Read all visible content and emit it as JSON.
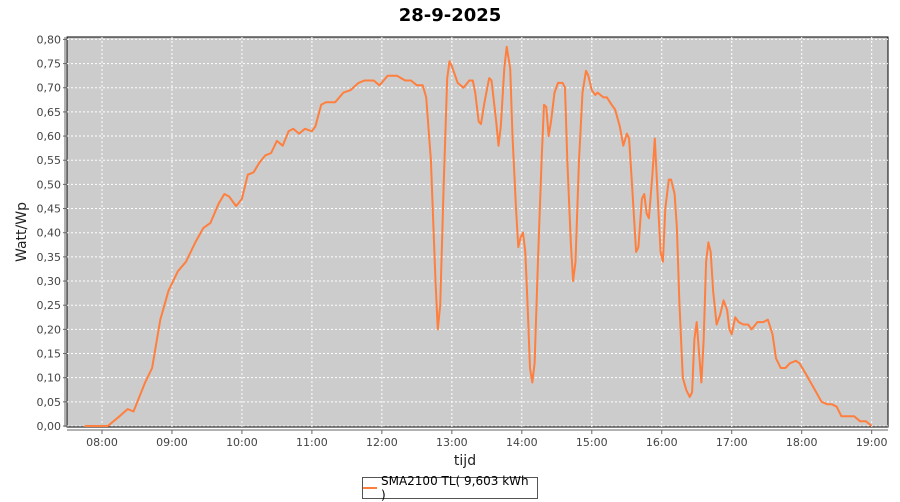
{
  "chart_data": {
    "type": "line",
    "title": "28-9-2025",
    "xlabel": "tijd",
    "ylabel": "Watt/Wp",
    "xlim": [
      "07:30",
      "19:14"
    ],
    "ylim": [
      0,
      0.805
    ],
    "grid": true,
    "legend_placement": "bottom",
    "background_color": "#cccccc",
    "xticks": [
      "08:00",
      "09:00",
      "10:00",
      "11:00",
      "12:00",
      "13:00",
      "14:00",
      "15:00",
      "16:00",
      "17:00",
      "18:00",
      "19:00"
    ],
    "yticks": [
      "0,00",
      "0,05",
      "0,10",
      "0,15",
      "0,20",
      "0,25",
      "0,30",
      "0,35",
      "0,40",
      "0,45",
      "0,50",
      "0,55",
      "0,60",
      "0,65",
      "0,70",
      "0,75",
      "0,80"
    ],
    "series": [
      {
        "name": "SMA2100 TL( 9,603 kWh )",
        "color": "#ff7f3f",
        "points": [
          [
            "07:45",
            0
          ],
          [
            "08:05",
            0
          ],
          [
            "08:15",
            0.02
          ],
          [
            "08:22",
            0.035
          ],
          [
            "08:27",
            0.03
          ],
          [
            "08:32",
            0.06
          ],
          [
            "08:37",
            0.09
          ],
          [
            "08:43",
            0.12
          ],
          [
            "08:50",
            0.22
          ],
          [
            "08:57",
            0.28
          ],
          [
            "09:05",
            0.32
          ],
          [
            "09:12",
            0.34
          ],
          [
            "09:20",
            0.38
          ],
          [
            "09:27",
            0.41
          ],
          [
            "09:33",
            0.42
          ],
          [
            "09:40",
            0.46
          ],
          [
            "09:45",
            0.48
          ],
          [
            "09:49",
            0.475
          ],
          [
            "09:55",
            0.455
          ],
          [
            "10:00",
            0.47
          ],
          [
            "10:05",
            0.52
          ],
          [
            "10:10",
            0.525
          ],
          [
            "10:15",
            0.545
          ],
          [
            "10:20",
            0.56
          ],
          [
            "10:25",
            0.565
          ],
          [
            "10:30",
            0.59
          ],
          [
            "10:35",
            0.58
          ],
          [
            "10:40",
            0.61
          ],
          [
            "10:44",
            0.615
          ],
          [
            "10:49",
            0.605
          ],
          [
            "10:54",
            0.615
          ],
          [
            "11:00",
            0.61
          ],
          [
            "11:03",
            0.62
          ],
          [
            "11:08",
            0.665
          ],
          [
            "11:12",
            0.67
          ],
          [
            "11:20",
            0.67
          ],
          [
            "11:27",
            0.69
          ],
          [
            "11:33",
            0.695
          ],
          [
            "11:40",
            0.71
          ],
          [
            "11:45",
            0.715
          ],
          [
            "11:53",
            0.715
          ],
          [
            "11:58",
            0.705
          ],
          [
            "12:05",
            0.725
          ],
          [
            "12:13",
            0.725
          ],
          [
            "12:20",
            0.715
          ],
          [
            "12:25",
            0.715
          ],
          [
            "12:30",
            0.705
          ],
          [
            "12:35",
            0.705
          ],
          [
            "12:38",
            0.68
          ],
          [
            "12:42",
            0.55
          ],
          [
            "12:46",
            0.3
          ],
          [
            "12:48",
            0.2
          ],
          [
            "12:50",
            0.25
          ],
          [
            "12:53",
            0.5
          ],
          [
            "12:56",
            0.72
          ],
          [
            "12:58",
            0.755
          ],
          [
            "13:00",
            0.745
          ],
          [
            "13:05",
            0.71
          ],
          [
            "13:10",
            0.7
          ],
          [
            "13:15",
            0.715
          ],
          [
            "13:18",
            0.715
          ],
          [
            "13:20",
            0.69
          ],
          [
            "13:23",
            0.63
          ],
          [
            "13:25",
            0.625
          ],
          [
            "13:28",
            0.67
          ],
          [
            "13:32",
            0.72
          ],
          [
            "13:34",
            0.715
          ],
          [
            "13:38",
            0.63
          ],
          [
            "13:40",
            0.58
          ],
          [
            "13:42",
            0.62
          ],
          [
            "13:45",
            0.74
          ],
          [
            "13:47",
            0.785
          ],
          [
            "13:50",
            0.74
          ],
          [
            "13:52",
            0.6
          ],
          [
            "13:55",
            0.45
          ],
          [
            "13:57",
            0.37
          ],
          [
            "13:59",
            0.39
          ],
          [
            "14:01",
            0.4
          ],
          [
            "14:03",
            0.36
          ],
          [
            "14:05",
            0.25
          ],
          [
            "14:07",
            0.12
          ],
          [
            "14:09",
            0.09
          ],
          [
            "14:11",
            0.13
          ],
          [
            "14:14",
            0.35
          ],
          [
            "14:17",
            0.55
          ],
          [
            "14:19",
            0.665
          ],
          [
            "14:21",
            0.66
          ],
          [
            "14:23",
            0.6
          ],
          [
            "14:25",
            0.63
          ],
          [
            "14:28",
            0.69
          ],
          [
            "14:31",
            0.71
          ],
          [
            "14:35",
            0.71
          ],
          [
            "14:37",
            0.7
          ],
          [
            "14:39",
            0.55
          ],
          [
            "14:42",
            0.38
          ],
          [
            "14:44",
            0.3
          ],
          [
            "14:46",
            0.34
          ],
          [
            "14:49",
            0.55
          ],
          [
            "14:52",
            0.69
          ],
          [
            "14:55",
            0.735
          ],
          [
            "14:57",
            0.725
          ],
          [
            "15:00",
            0.695
          ],
          [
            "15:03",
            0.685
          ],
          [
            "15:05",
            0.69
          ],
          [
            "15:10",
            0.68
          ],
          [
            "15:13",
            0.68
          ],
          [
            "15:17",
            0.665
          ],
          [
            "15:20",
            0.655
          ],
          [
            "15:24",
            0.62
          ],
          [
            "15:27",
            0.58
          ],
          [
            "15:30",
            0.605
          ],
          [
            "15:32",
            0.595
          ],
          [
            "15:35",
            0.48
          ],
          [
            "15:38",
            0.36
          ],
          [
            "15:40",
            0.37
          ],
          [
            "15:43",
            0.47
          ],
          [
            "15:45",
            0.48
          ],
          [
            "15:47",
            0.44
          ],
          [
            "15:49",
            0.43
          ],
          [
            "15:52",
            0.52
          ],
          [
            "15:54",
            0.595
          ],
          [
            "15:57",
            0.45
          ],
          [
            "15:59",
            0.36
          ],
          [
            "16:01",
            0.34
          ],
          [
            "16:03",
            0.45
          ],
          [
            "16:06",
            0.51
          ],
          [
            "16:08",
            0.51
          ],
          [
            "16:11",
            0.48
          ],
          [
            "16:13",
            0.41
          ],
          [
            "16:15",
            0.26
          ],
          [
            "16:18",
            0.1
          ],
          [
            "16:21",
            0.075
          ],
          [
            "16:24",
            0.06
          ],
          [
            "16:26",
            0.07
          ],
          [
            "16:28",
            0.18
          ],
          [
            "16:30",
            0.215
          ],
          [
            "16:32",
            0.15
          ],
          [
            "16:34",
            0.09
          ],
          [
            "16:36",
            0.18
          ],
          [
            "16:38",
            0.34
          ],
          [
            "16:40",
            0.38
          ],
          [
            "16:42",
            0.36
          ],
          [
            "16:44",
            0.28
          ],
          [
            "16:47",
            0.21
          ],
          [
            "16:50",
            0.23
          ],
          [
            "16:53",
            0.26
          ],
          [
            "16:56",
            0.24
          ],
          [
            "16:58",
            0.2
          ],
          [
            "17:00",
            0.19
          ],
          [
            "17:03",
            0.225
          ],
          [
            "17:06",
            0.215
          ],
          [
            "17:10",
            0.21
          ],
          [
            "17:14",
            0.21
          ],
          [
            "17:17",
            0.2
          ],
          [
            "17:22",
            0.215
          ],
          [
            "17:27",
            0.215
          ],
          [
            "17:31",
            0.22
          ],
          [
            "17:35",
            0.19
          ],
          [
            "17:38",
            0.14
          ],
          [
            "17:42",
            0.12
          ],
          [
            "17:46",
            0.12
          ],
          [
            "17:50",
            0.13
          ],
          [
            "17:55",
            0.135
          ],
          [
            "17:58",
            0.13
          ],
          [
            "18:03",
            0.11
          ],
          [
            "18:10",
            0.08
          ],
          [
            "18:17",
            0.05
          ],
          [
            "18:22",
            0.045
          ],
          [
            "18:26",
            0.045
          ],
          [
            "18:30",
            0.04
          ],
          [
            "18:34",
            0.02
          ],
          [
            "18:40",
            0.02
          ],
          [
            "18:45",
            0.02
          ],
          [
            "18:50",
            0.01
          ],
          [
            "18:55",
            0.01
          ],
          [
            "19:00",
            0.0
          ]
        ]
      }
    ]
  }
}
